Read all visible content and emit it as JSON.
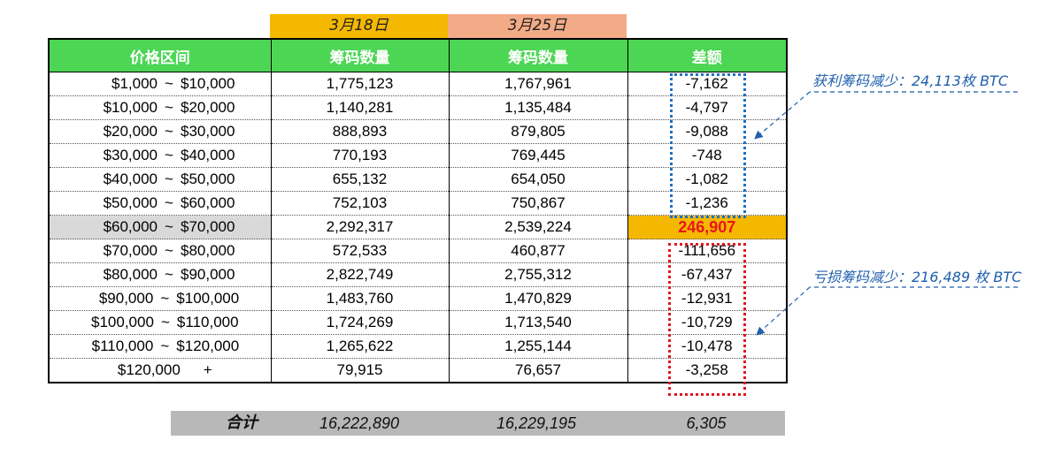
{
  "dates": {
    "date1": "3月18日",
    "date2": "3月25日"
  },
  "table": {
    "headers": [
      "价格区间",
      "筹码数量",
      "筹码数量",
      "差额"
    ],
    "rows": [
      {
        "low": "$1,000",
        "sep": "~",
        "high": "$10,000",
        "a": "1,775,123",
        "b": "1,767,961",
        "diff": "-7,162"
      },
      {
        "low": "$10,000",
        "sep": "~",
        "high": "$20,000",
        "a": "1,140,281",
        "b": "1,135,484",
        "diff": "-4,797"
      },
      {
        "low": "$20,000",
        "sep": "~",
        "high": "$30,000",
        "a": "888,893",
        "b": "879,805",
        "diff": "-9,088"
      },
      {
        "low": "$30,000",
        "sep": "~",
        "high": "$40,000",
        "a": "770,193",
        "b": "769,445",
        "diff": "-748"
      },
      {
        "low": "$40,000",
        "sep": "~",
        "high": "$50,000",
        "a": "655,132",
        "b": "654,050",
        "diff": "-1,082"
      },
      {
        "low": "$50,000",
        "sep": "~",
        "high": "$60,000",
        "a": "752,103",
        "b": "750,867",
        "diff": "-1,236"
      },
      {
        "low": "$60,000",
        "sep": "~",
        "high": "$70,000",
        "a": "2,292,317",
        "b": "2,539,224",
        "diff": "246,907"
      },
      {
        "low": "$70,000",
        "sep": "~",
        "high": "$80,000",
        "a": "572,533",
        "b": "460,877",
        "diff": "-111,656"
      },
      {
        "low": "$80,000",
        "sep": "~",
        "high": "$90,000",
        "a": "2,822,749",
        "b": "2,755,312",
        "diff": "-67,437"
      },
      {
        "low": "$90,000",
        "sep": "~",
        "high": "$100,000",
        "a": "1,483,760",
        "b": "1,470,829",
        "diff": "-12,931"
      },
      {
        "low": "$100,000",
        "sep": "~",
        "high": "$110,000",
        "a": "1,724,269",
        "b": "1,713,540",
        "diff": "-10,729"
      },
      {
        "low": "$110,000",
        "sep": "~",
        "high": "$120,000",
        "a": "1,265,622",
        "b": "1,255,144",
        "diff": "-10,478"
      },
      {
        "low": "$120,000",
        "sep": "",
        "high": "+",
        "a": "79,915",
        "b": "76,657",
        "diff": "-3,258"
      }
    ]
  },
  "total": {
    "label": "合计",
    "a": "16,222,890",
    "b": "16,229,195",
    "diff": "6,305"
  },
  "notes": {
    "profit": "获利筹码减少：24,113枚 BTC",
    "loss": "亏损筹码减少：216,489 枚 BTC"
  },
  "colors": {
    "header_green": "#4cd654",
    "date1_bg": "#f5b800",
    "date2_bg": "#f2ab86",
    "highlight_orange": "#f5b800",
    "highlight_text_red": "#e8151b",
    "profit_box_blue": "#1f6fc5",
    "loss_box_red": "#e0161b",
    "note_blue": "#1f5fad",
    "total_bg": "#b8b8b8"
  }
}
